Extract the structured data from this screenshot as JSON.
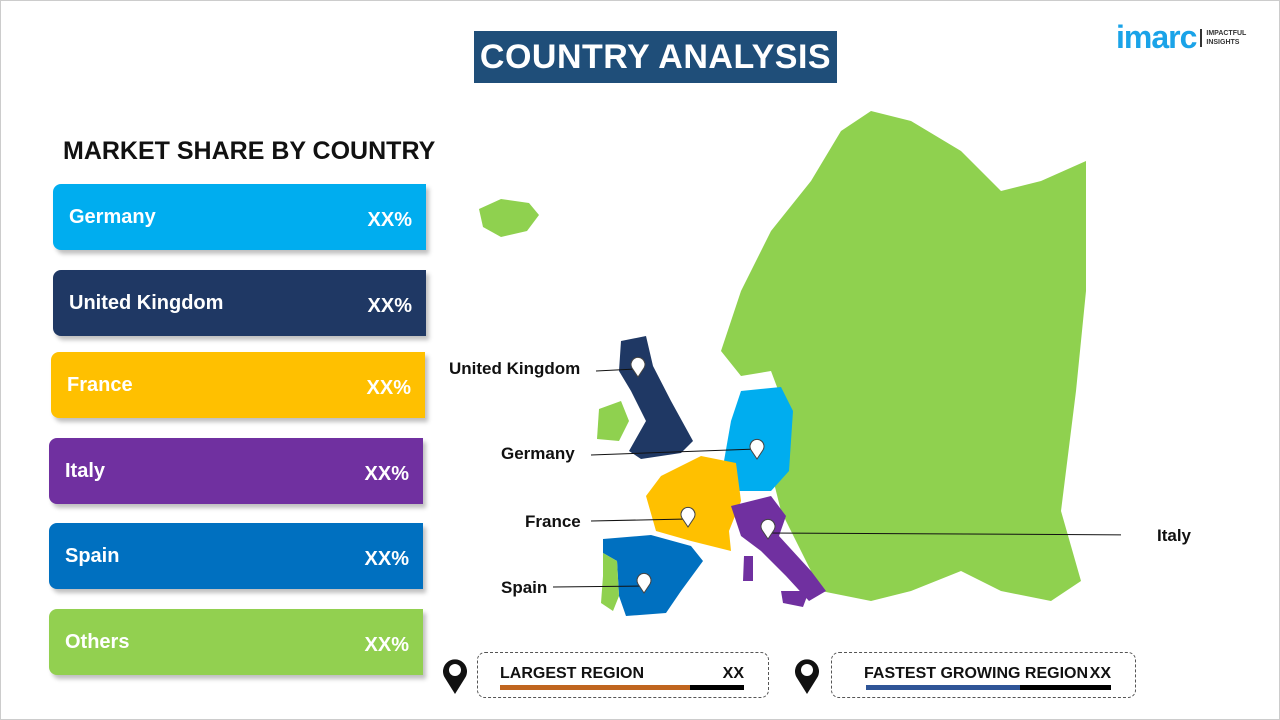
{
  "header": {
    "title": "COUNTRY ANALYSIS"
  },
  "logo": {
    "word": "imarc",
    "tagline": "IMPACTFUL INSIGHTS"
  },
  "market_share": {
    "title": "MARKET SHARE BY COUNTRY",
    "items": [
      {
        "name": "Germany",
        "value": "XX%",
        "color": "#00adef"
      },
      {
        "name": "United Kingdom",
        "value": "XX%",
        "color": "#1f3864"
      },
      {
        "name": "France",
        "value": "XX%",
        "color": "#ffc000"
      },
      {
        "name": "Italy",
        "value": "XX%",
        "color": "#7030a0"
      },
      {
        "name": "Spain",
        "value": "XX%",
        "color": "#0070c0"
      },
      {
        "name": "Others",
        "value": "XX%",
        "color": "#92d050"
      }
    ]
  },
  "map": {
    "labels": {
      "uk": "United Kingdom",
      "germany": "Germany",
      "france": "France",
      "italy": "Italy",
      "spain": "Spain"
    },
    "base_color": "#8fd14f"
  },
  "summary": {
    "largest": {
      "label": "LARGEST REGION",
      "value": "XX",
      "fill": 0.78,
      "color": "#c0651f"
    },
    "fastest": {
      "label": "FASTEST GROWING REGION",
      "value": "XX",
      "fill": 0.63,
      "color": "#2f5597"
    }
  }
}
